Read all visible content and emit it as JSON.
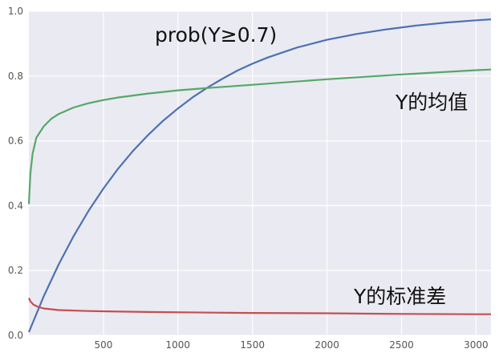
{
  "chart_data": {
    "type": "line",
    "title": "",
    "xlabel": "",
    "ylabel": "",
    "xlim": [
      0,
      3100
    ],
    "ylim": [
      0.0,
      1.0
    ],
    "x_ticks": [
      500,
      1000,
      1500,
      2000,
      2500,
      3000
    ],
    "x_tick_labels": [
      "500",
      "1000",
      "1500",
      "2000",
      "2500",
      "3000"
    ],
    "y_ticks": [
      0.0,
      0.2,
      0.4,
      0.6,
      0.8,
      1.0
    ],
    "y_tick_labels": [
      "0.0",
      "0.2",
      "0.4",
      "0.6",
      "0.8",
      "1.0"
    ],
    "grid": true,
    "legend": "none",
    "colors": {
      "background": "#eaeaf2",
      "grid": "#ffffff",
      "series_blue": "#4c72b0",
      "series_green": "#55a868",
      "series_red": "#c44e52"
    },
    "series": [
      {
        "name": "prob(Y≥0.7)",
        "color": "#4c72b0",
        "x": [
          0,
          100,
          200,
          300,
          400,
          500,
          600,
          700,
          800,
          900,
          1000,
          1100,
          1200,
          1300,
          1400,
          1500,
          1600,
          1800,
          2000,
          2200,
          2400,
          2600,
          2800,
          3000,
          3100
        ],
        "y": [
          0.01,
          0.121,
          0.219,
          0.306,
          0.384,
          0.453,
          0.515,
          0.57,
          0.618,
          0.662,
          0.7,
          0.735,
          0.765,
          0.792,
          0.817,
          0.838,
          0.857,
          0.888,
          0.912,
          0.93,
          0.944,
          0.956,
          0.965,
          0.972,
          0.975
        ]
      },
      {
        "name": "Y的均值",
        "color": "#55a868",
        "x": [
          0,
          10,
          25,
          50,
          100,
          150,
          200,
          300,
          400,
          500,
          600,
          800,
          1000,
          1200,
          1500,
          2000,
          2500,
          3000,
          3100
        ],
        "y": [
          0.405,
          0.5,
          0.56,
          0.61,
          0.645,
          0.668,
          0.683,
          0.703,
          0.716,
          0.726,
          0.734,
          0.746,
          0.756,
          0.763,
          0.773,
          0.79,
          0.805,
          0.818,
          0.82
        ]
      },
      {
        "name": "Y的标准差",
        "color": "#c44e52",
        "x": [
          0,
          10,
          30,
          60,
          100,
          200,
          400,
          800,
          1500,
          2000,
          2500,
          3000,
          3100
        ],
        "y": [
          0.115,
          0.105,
          0.095,
          0.088,
          0.083,
          0.078,
          0.075,
          0.072,
          0.069,
          0.068,
          0.066,
          0.065,
          0.065
        ]
      }
    ],
    "annotations": [
      {
        "text": "prob(Y≥0.7)",
        "series": 0
      },
      {
        "text": "Y的均值",
        "series": 1
      },
      {
        "text": "Y的标准差",
        "series": 2
      }
    ]
  }
}
